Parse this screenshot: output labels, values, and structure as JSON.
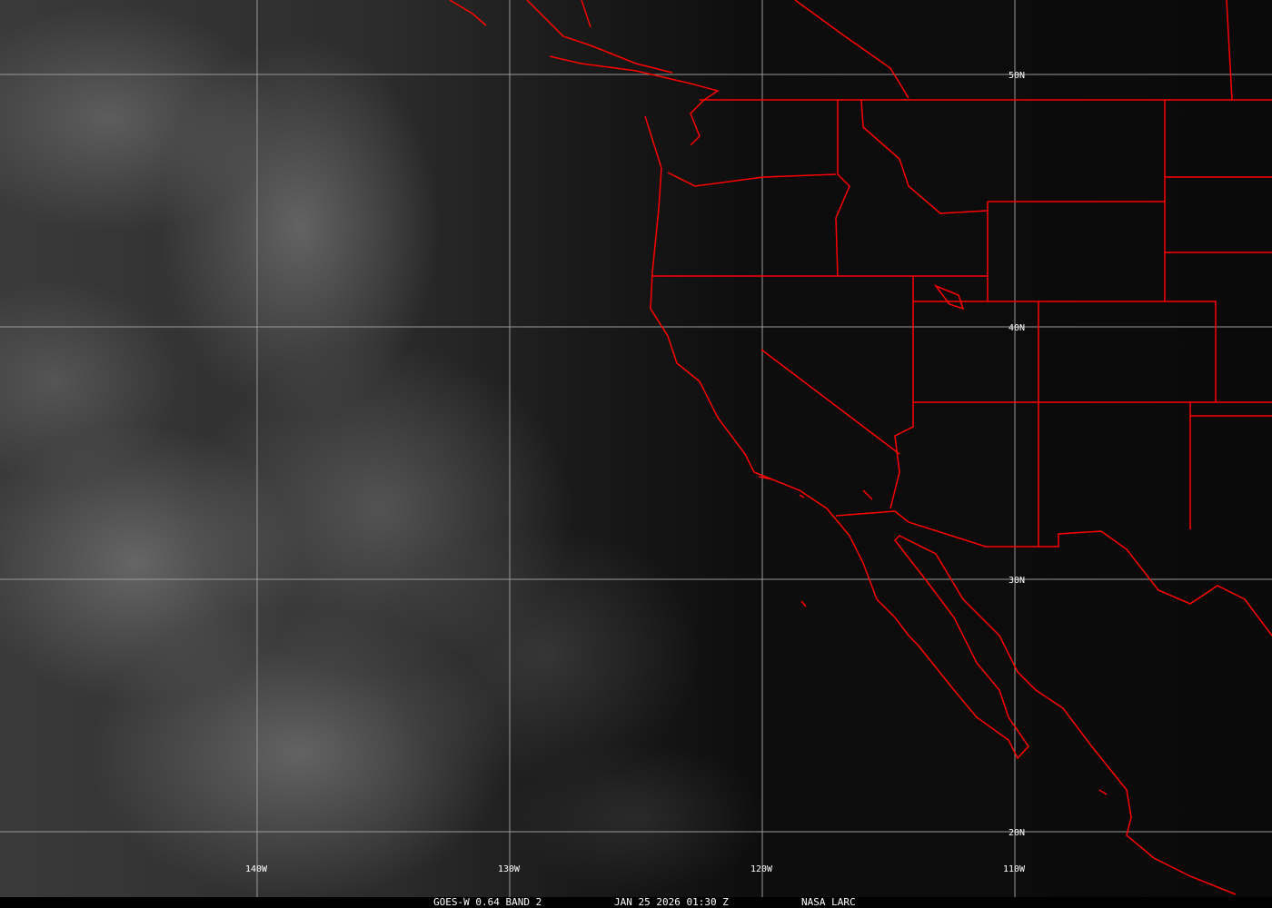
{
  "grid": {
    "lon_labels": [
      "140W",
      "130W",
      "120W",
      "110W"
    ],
    "lat_labels": [
      "50N",
      "40N",
      "30N",
      "20N"
    ]
  },
  "footer": {
    "satellite": "GOES-W 0.64 BAND 2",
    "datetime": "JAN 25 2026 01:30 Z",
    "source": "NASA LARC"
  },
  "colors": {
    "borders": "#ff0000",
    "grid": "#a0a0a0",
    "background": "#000000"
  }
}
